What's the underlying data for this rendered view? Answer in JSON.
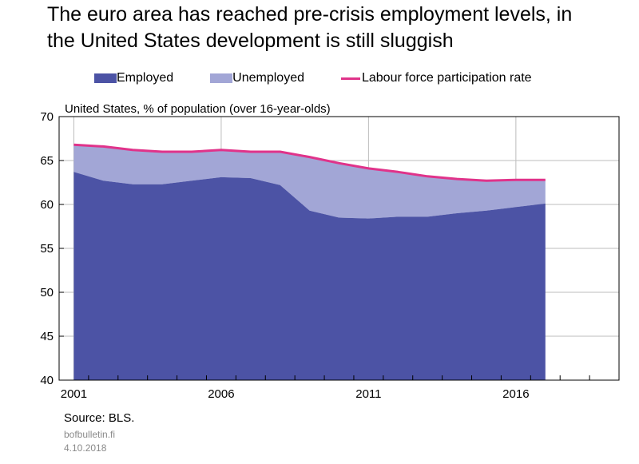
{
  "title_line1": "The euro area has reached pre-crisis employment levels, in",
  "title_line2": "the United States development is still sluggish",
  "legend": {
    "employed": "Employed",
    "unemployed": "Unemployed",
    "participation": "Labour force participation rate"
  },
  "colors": {
    "employed": "#4c53a5",
    "unemployed": "#a2a6d6",
    "participation": "#e0338a",
    "grid": "#bdbdbd"
  },
  "source": "Source: BLS.",
  "site": "bofbulletin.fi",
  "date": "4.10.2018",
  "chart_data": {
    "type": "area",
    "subtitle": "United States, % of population (over 16-year-olds)",
    "x": [
      2001,
      2002,
      2003,
      2004,
      2005,
      2006,
      2007,
      2008,
      2009,
      2010,
      2011,
      2012,
      2013,
      2014,
      2015,
      2016,
      2017
    ],
    "series": [
      {
        "name": "Employed",
        "values": [
          63.7,
          62.7,
          62.3,
          62.3,
          62.7,
          63.1,
          63.0,
          62.2,
          59.3,
          58.5,
          58.4,
          58.6,
          58.6,
          59.0,
          59.3,
          59.7,
          60.1
        ]
      },
      {
        "name": "Unemployed",
        "values": [
          3.1,
          3.9,
          4.0,
          3.7,
          3.3,
          3.0,
          3.0,
          3.8,
          6.1,
          6.2,
          5.7,
          5.1,
          4.6,
          3.9,
          3.4,
          3.1,
          2.7
        ]
      },
      {
        "name": "Labour force participation rate",
        "values": [
          66.8,
          66.6,
          66.2,
          66.0,
          66.0,
          66.2,
          66.0,
          66.0,
          65.4,
          64.7,
          64.1,
          63.7,
          63.2,
          62.9,
          62.7,
          62.8,
          62.8
        ]
      }
    ],
    "xticks": [
      2001,
      2006,
      2011,
      2016
    ],
    "ylim": [
      40,
      70
    ],
    "yticks": [
      40,
      45,
      50,
      55,
      60,
      65,
      70
    ],
    "xlim": [
      2000.5,
      2019.5
    ],
    "grid": true,
    "legend_position": "top"
  }
}
